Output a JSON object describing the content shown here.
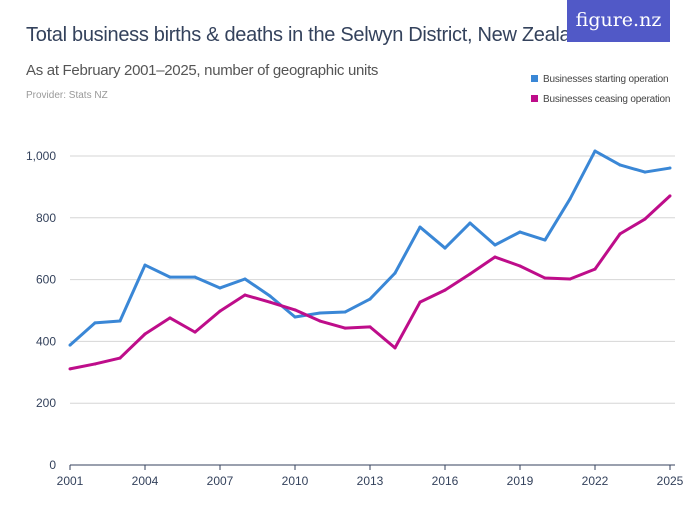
{
  "header": {
    "title": "Total business births & deaths in the Selwyn District, New Zealand",
    "subtitle": "As at February 2001–2025, number of geographic units",
    "provider": "Provider: Stats NZ",
    "logo": "figure.nz"
  },
  "chart_data": {
    "type": "line",
    "title": "Total business births & deaths in the Selwyn District, New Zealand",
    "subtitle": "As at February 2001–2025, number of geographic units",
    "x": [
      2001,
      2002,
      2003,
      2004,
      2005,
      2006,
      2007,
      2008,
      2009,
      2010,
      2011,
      2012,
      2013,
      2014,
      2015,
      2016,
      2017,
      2018,
      2019,
      2020,
      2021,
      2022,
      2023,
      2024,
      2025
    ],
    "x_ticks": [
      "2001",
      "2004",
      "2007",
      "2010",
      "2013",
      "2016",
      "2019",
      "2022",
      "2025"
    ],
    "y_ticks": [
      "0",
      "200",
      "400",
      "600",
      "800",
      "1,000"
    ],
    "ylim": [
      0,
      1000
    ],
    "grid": true,
    "legend": "top-right",
    "series": [
      {
        "name": "Businesses starting operation",
        "color": "#3a87d6",
        "values": [
          388,
          460,
          466,
          647,
          608,
          608,
          573,
          602,
          547,
          479,
          492,
          495,
          537,
          621,
          770,
          702,
          783,
          712,
          754,
          728,
          861,
          1016,
          971,
          948,
          961
        ]
      },
      {
        "name": "Businesses ceasing operation",
        "color": "#be0d8a",
        "values": [
          311,
          327,
          346,
          424,
          476,
          430,
          498,
          550,
          527,
          502,
          466,
          443,
          447,
          379,
          527,
          566,
          618,
          673,
          644,
          605,
          602,
          634,
          748,
          796,
          871
        ]
      }
    ]
  }
}
